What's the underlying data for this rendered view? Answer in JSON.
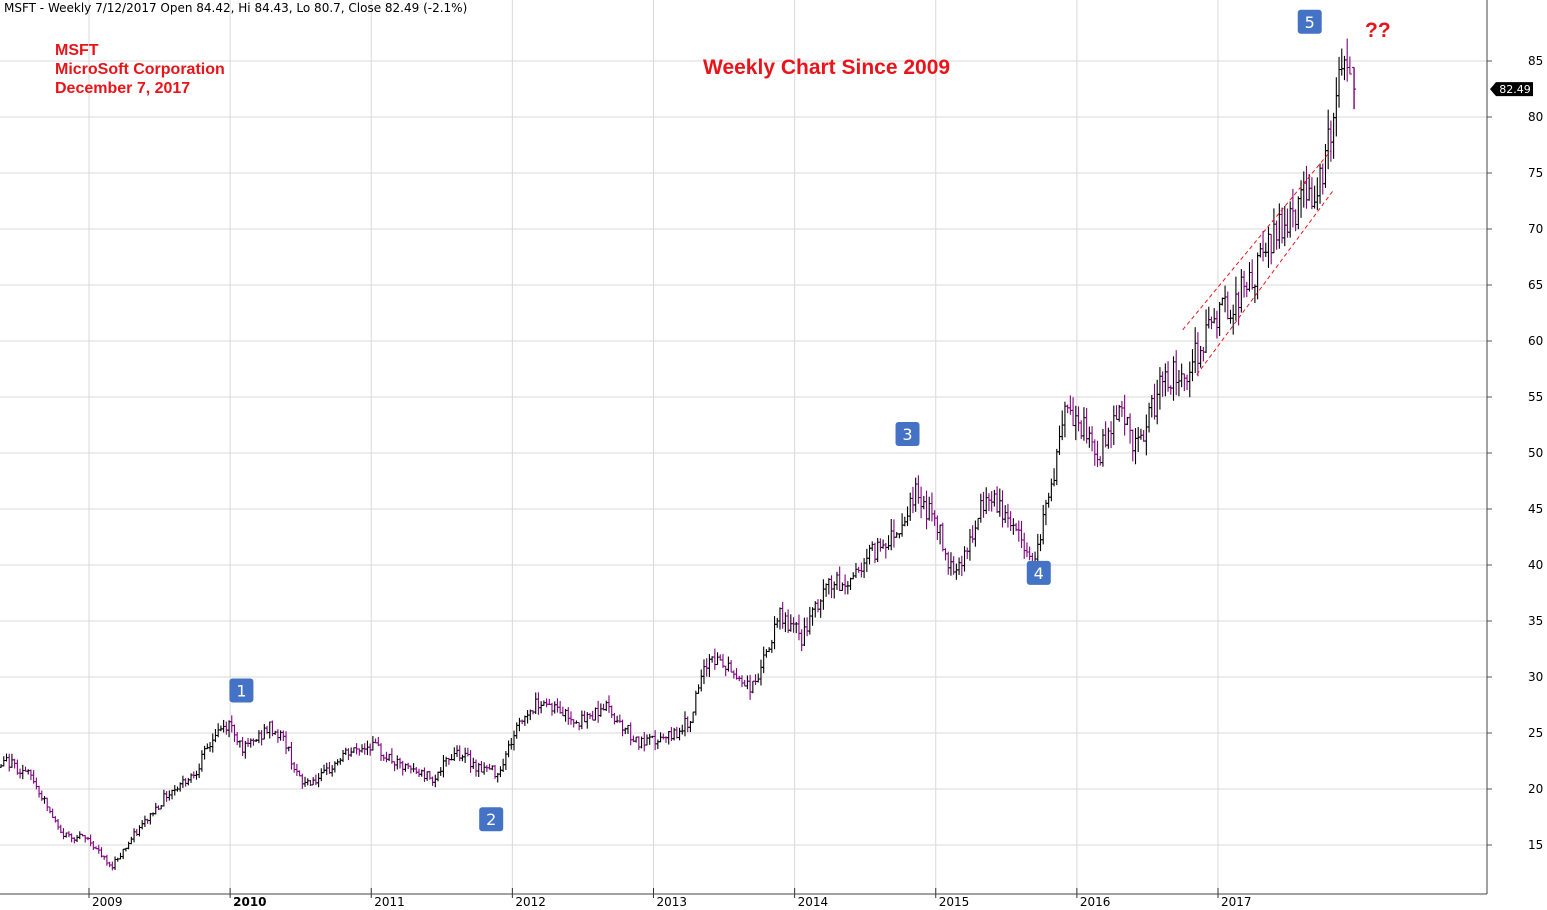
{
  "header": {
    "summary": "MSFT - Weekly 7/12/2017 Open 84.42, Hi 84.43, Lo 80.7, Close 82.49 (-2.1%)"
  },
  "annotations": {
    "symbol": "MSFT",
    "company": "MicroSoft Corporation",
    "date": "December 7, 2017",
    "title": "Weekly Chart Since 2009",
    "question": "??"
  },
  "colors": {
    "up_bar": "#000000",
    "down_bar": "#800080",
    "annotation_red": "#e8141a",
    "wave_marker_bg": "#4472c4",
    "grid": "#d9d9d9",
    "channel": "#e8141a"
  },
  "chart_data": {
    "type": "ohlc",
    "ticker": "MSFT",
    "interval": "weekly",
    "y_axis": {
      "side": "right",
      "range": [
        11,
        90
      ],
      "ticks": [
        15,
        20,
        25,
        30,
        35,
        40,
        45,
        50,
        55,
        60,
        65,
        70,
        75,
        80,
        85
      ]
    },
    "x_axis": {
      "range": [
        2008.05,
        2018.7
      ],
      "ticks": [
        "2009",
        "2010",
        "2011",
        "2012",
        "2013",
        "2014",
        "2015",
        "2016",
        "2017"
      ],
      "bold_ticks": [
        "2010"
      ]
    },
    "grid": true,
    "last_price_label": "82.49",
    "last_bar": {
      "open": 84.42,
      "high": 84.43,
      "low": 80.7,
      "close": 82.49,
      "change_pct": -2.1
    },
    "price_path": [
      {
        "t": 2008.05,
        "v": 23.0
      },
      {
        "t": 2008.3,
        "v": 21.0
      },
      {
        "t": 2008.42,
        "v": 22.5
      },
      {
        "t": 2008.6,
        "v": 21.0
      },
      {
        "t": 2008.8,
        "v": 16.0
      },
      {
        "t": 2009.0,
        "v": 15.5
      },
      {
        "t": 2009.15,
        "v": 13.0
      },
      {
        "t": 2009.33,
        "v": 16.0
      },
      {
        "t": 2009.55,
        "v": 19.5
      },
      {
        "t": 2009.75,
        "v": 21.5
      },
      {
        "t": 2009.9,
        "v": 25.0
      },
      {
        "t": 2010.0,
        "v": 25.8
      },
      {
        "t": 2010.1,
        "v": 23.5
      },
      {
        "t": 2010.28,
        "v": 25.5
      },
      {
        "t": 2010.38,
        "v": 24.5
      },
      {
        "t": 2010.5,
        "v": 20.5
      },
      {
        "t": 2010.65,
        "v": 21.0
      },
      {
        "t": 2010.8,
        "v": 23.0
      },
      {
        "t": 2011.0,
        "v": 24.0
      },
      {
        "t": 2011.2,
        "v": 22.0
      },
      {
        "t": 2011.45,
        "v": 21.0
      },
      {
        "t": 2011.6,
        "v": 23.5
      },
      {
        "t": 2011.75,
        "v": 22.0
      },
      {
        "t": 2011.9,
        "v": 21.5
      },
      {
        "t": 2012.05,
        "v": 26.0
      },
      {
        "t": 2012.2,
        "v": 28.0
      },
      {
        "t": 2012.4,
        "v": 26.5
      },
      {
        "t": 2012.5,
        "v": 26.0
      },
      {
        "t": 2012.65,
        "v": 27.5
      },
      {
        "t": 2012.8,
        "v": 25.5
      },
      {
        "t": 2012.9,
        "v": 24.0
      },
      {
        "t": 2013.1,
        "v": 24.5
      },
      {
        "t": 2013.25,
        "v": 26.0
      },
      {
        "t": 2013.4,
        "v": 32.0
      },
      {
        "t": 2013.55,
        "v": 30.5
      },
      {
        "t": 2013.7,
        "v": 29.0
      },
      {
        "t": 2013.8,
        "v": 32.0
      },
      {
        "t": 2013.9,
        "v": 35.5
      },
      {
        "t": 2014.05,
        "v": 33.5
      },
      {
        "t": 2014.25,
        "v": 38.5
      },
      {
        "t": 2014.35,
        "v": 38.0
      },
      {
        "t": 2014.5,
        "v": 40.5
      },
      {
        "t": 2014.75,
        "v": 43.5
      },
      {
        "t": 2014.85,
        "v": 46.5
      },
      {
        "t": 2015.0,
        "v": 44.0
      },
      {
        "t": 2015.08,
        "v": 40.5
      },
      {
        "t": 2015.15,
        "v": 40.0
      },
      {
        "t": 2015.25,
        "v": 42.0
      },
      {
        "t": 2015.35,
        "v": 46.0
      },
      {
        "t": 2015.5,
        "v": 44.5
      },
      {
        "t": 2015.6,
        "v": 42.5
      },
      {
        "t": 2015.68,
        "v": 40.0
      },
      {
        "t": 2015.8,
        "v": 46.0
      },
      {
        "t": 2015.92,
        "v": 53.5
      },
      {
        "t": 2016.05,
        "v": 52.0
      },
      {
        "t": 2016.15,
        "v": 49.5
      },
      {
        "t": 2016.3,
        "v": 54.5
      },
      {
        "t": 2016.4,
        "v": 51.0
      },
      {
        "t": 2016.45,
        "v": 50.5
      },
      {
        "t": 2016.6,
        "v": 56.5
      },
      {
        "t": 2016.8,
        "v": 57.5
      },
      {
        "t": 2016.92,
        "v": 61.0
      },
      {
        "t": 2017.1,
        "v": 63.5
      },
      {
        "t": 2017.25,
        "v": 65.5
      },
      {
        "t": 2017.4,
        "v": 69.5
      },
      {
        "t": 2017.55,
        "v": 72.0
      },
      {
        "t": 2017.7,
        "v": 74.0
      },
      {
        "t": 2017.8,
        "v": 78.0
      },
      {
        "t": 2017.85,
        "v": 84.0
      },
      {
        "t": 2017.95,
        "v": 83.5
      }
    ],
    "wave_labels": [
      {
        "label": "1",
        "t": 2010.08,
        "v": 28.8
      },
      {
        "label": "2",
        "t": 2011.85,
        "v": 17.3
      },
      {
        "label": "3",
        "t": 2014.8,
        "v": 51.7
      },
      {
        "label": "4",
        "t": 2015.73,
        "v": 39.3
      },
      {
        "label": "5",
        "t": 2017.65,
        "v": 88.5
      }
    ],
    "trend_channel": [
      {
        "start": {
          "t": 2016.75,
          "v": 61.0
        },
        "end": {
          "t": 2017.8,
          "v": 77.0
        }
      },
      {
        "start": {
          "t": 2016.85,
          "v": 57.0
        },
        "end": {
          "t": 2017.82,
          "v": 73.5
        }
      }
    ]
  }
}
